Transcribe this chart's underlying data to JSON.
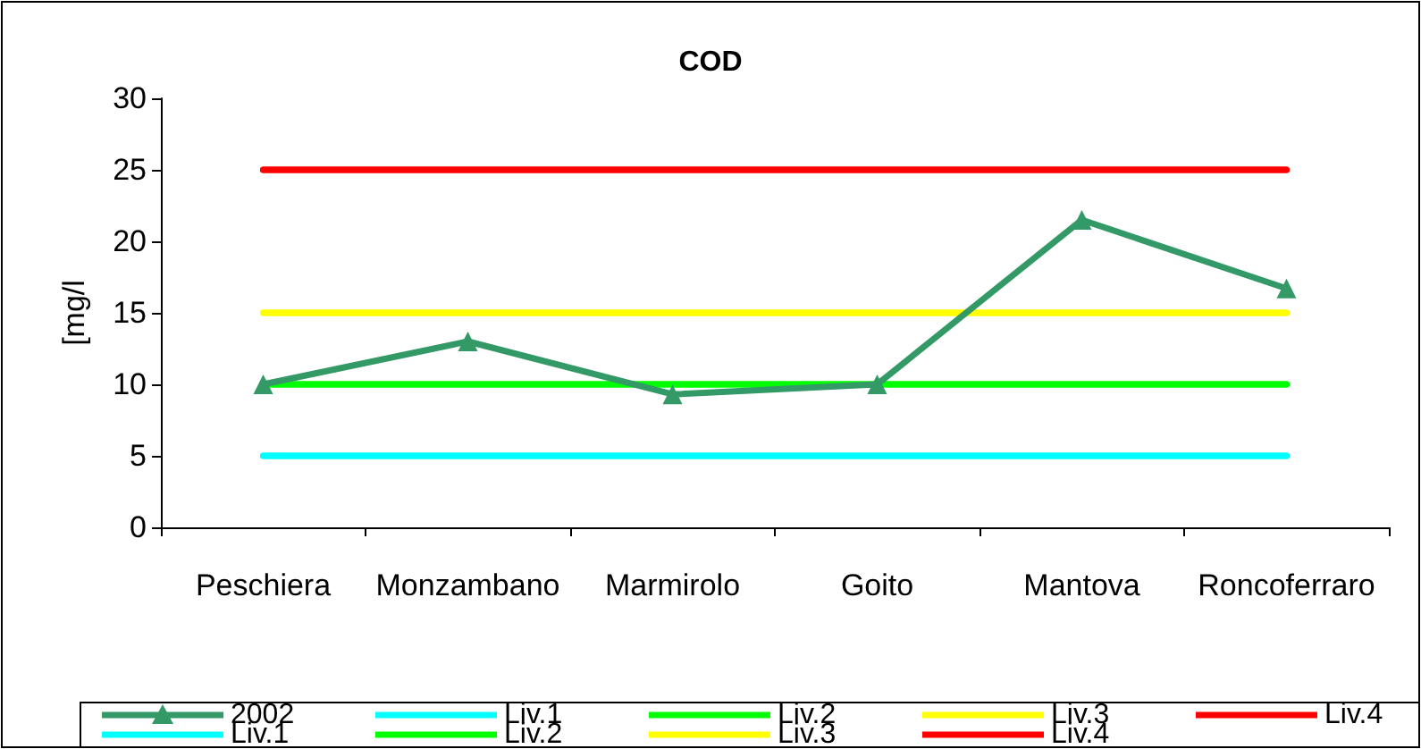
{
  "chart_data": {
    "type": "line",
    "title": "COD",
    "ylabel": "[mg/l",
    "categories": [
      "Peschiera",
      "Monzambano",
      "Marmirolo",
      "Goito",
      "Mantova",
      "Roncoferraro"
    ],
    "ylim": [
      0,
      30
    ],
    "yticks": [
      0,
      5,
      10,
      15,
      20,
      25,
      30
    ],
    "grid": false,
    "legend": "bottom",
    "line_style": "solid",
    "series": [
      {
        "name": "2002",
        "color": "#339966",
        "marker": "triangle",
        "values": [
          10,
          13,
          9.3,
          10,
          21.5,
          16.7
        ]
      },
      {
        "name": "Liv.1",
        "color": "#00ffff",
        "marker": "none",
        "values": [
          5,
          5,
          5,
          5,
          5,
          5
        ]
      },
      {
        "name": "Liv.2",
        "color": "#00ff00",
        "marker": "none",
        "values": [
          10,
          10,
          10,
          10,
          10,
          10
        ]
      },
      {
        "name": "Liv.3",
        "color": "#ffff00",
        "marker": "none",
        "values": [
          15,
          15,
          15,
          15,
          15,
          15
        ]
      },
      {
        "name": "Liv.4",
        "color": "#ff0000",
        "marker": "none",
        "values": [
          25,
          25,
          25,
          25,
          25,
          25
        ]
      },
      {
        "name": "Liv.1",
        "color": "#00ffff",
        "marker": "none",
        "values": [
          5,
          5,
          5,
          5,
          5,
          5
        ]
      },
      {
        "name": "Liv.2",
        "color": "#00ff00",
        "marker": "none",
        "values": [
          10,
          10,
          10,
          10,
          10,
          10
        ]
      },
      {
        "name": "Liv.3",
        "color": "#ffff00",
        "marker": "none",
        "values": [
          15,
          15,
          15,
          15,
          15,
          15
        ]
      },
      {
        "name": "Liv.4",
        "color": "#ff0000",
        "marker": "none",
        "values": [
          25,
          25,
          25,
          25,
          25,
          25
        ]
      }
    ]
  }
}
